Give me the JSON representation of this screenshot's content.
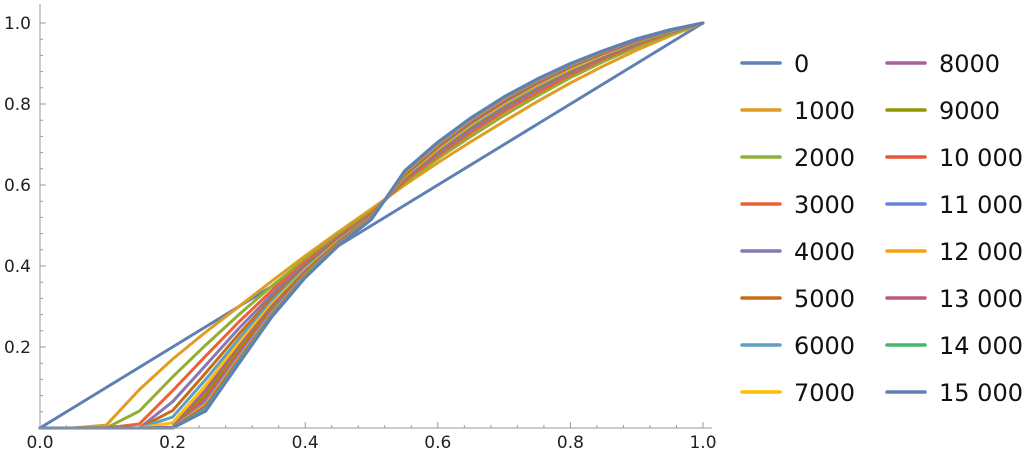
{
  "chart_data": {
    "type": "line",
    "title": "",
    "xlabel": "",
    "ylabel": "",
    "xlim": [
      0,
      1
    ],
    "ylim": [
      0,
      1
    ],
    "x_ticks": [
      "0.0",
      "0.2",
      "0.4",
      "0.6",
      "0.8",
      "1.0"
    ],
    "y_ticks": [
      "0.2",
      "0.4",
      "0.6",
      "0.8",
      "1.0"
    ],
    "grid": false,
    "legend_position": "right, two columns",
    "x": [
      0.0,
      0.05,
      0.1,
      0.15,
      0.2,
      0.25,
      0.3,
      0.35,
      0.4,
      0.45,
      0.5,
      0.55,
      0.6,
      0.65,
      0.7,
      0.75,
      0.8,
      0.85,
      0.9,
      0.95,
      1.0
    ],
    "series": [
      {
        "name": "0",
        "color": "#5E81B5",
        "values": [
          0.0,
          0.05,
          0.1,
          0.15,
          0.2,
          0.25,
          0.3,
          0.35,
          0.4,
          0.45,
          0.5,
          0.55,
          0.6,
          0.65,
          0.7,
          0.75,
          0.8,
          0.85,
          0.9,
          0.95,
          1.0
        ]
      },
      {
        "name": "1000",
        "color": "#E19C24",
        "values": [
          0.0,
          0.0,
          0.007,
          0.095,
          0.17,
          0.237,
          0.3,
          0.363,
          0.425,
          0.484,
          0.541,
          0.6,
          0.655,
          0.707,
          0.757,
          0.806,
          0.852,
          0.894,
          0.933,
          0.968,
          1.0
        ]
      },
      {
        "name": "2000",
        "color": "#8FB032",
        "values": [
          0.0,
          0.0,
          0.0,
          0.042,
          0.126,
          0.205,
          0.28,
          0.351,
          0.417,
          0.477,
          0.534,
          0.606,
          0.665,
          0.72,
          0.772,
          0.82,
          0.865,
          0.905,
          0.941,
          0.973,
          1.0
        ]
      },
      {
        "name": "3000",
        "color": "#EB6235",
        "values": [
          0.0,
          0.0,
          0.0,
          0.01,
          0.092,
          0.178,
          0.262,
          0.34,
          0.41,
          0.472,
          0.53,
          0.61,
          0.672,
          0.729,
          0.781,
          0.828,
          0.872,
          0.911,
          0.946,
          0.976,
          1.0
        ]
      },
      {
        "name": "4000",
        "color": "#8778B3",
        "values": [
          0.0,
          0.0,
          0.0,
          0.0,
          0.065,
          0.155,
          0.246,
          0.33,
          0.404,
          0.469,
          0.527,
          0.614,
          0.678,
          0.736,
          0.788,
          0.835,
          0.877,
          0.915,
          0.949,
          0.977,
          1.0
        ]
      },
      {
        "name": "5000",
        "color": "#C56E1A",
        "values": [
          0.0,
          0.0,
          0.0,
          0.0,
          0.043,
          0.136,
          0.232,
          0.321,
          0.399,
          0.466,
          0.525,
          0.617,
          0.683,
          0.742,
          0.794,
          0.84,
          0.881,
          0.918,
          0.951,
          0.978,
          1.0
        ]
      },
      {
        "name": "6000",
        "color": "#5D9EC7",
        "values": [
          0.0,
          0.0,
          0.0,
          0.0,
          0.027,
          0.12,
          0.22,
          0.314,
          0.394,
          0.463,
          0.523,
          0.62,
          0.687,
          0.746,
          0.798,
          0.844,
          0.885,
          0.921,
          0.953,
          0.979,
          1.0
        ]
      },
      {
        "name": "7000",
        "color": "#FFBF00",
        "values": [
          0.0,
          0.0,
          0.0,
          0.0,
          0.013,
          0.106,
          0.21,
          0.307,
          0.39,
          0.461,
          0.522,
          0.622,
          0.69,
          0.75,
          0.802,
          0.848,
          0.888,
          0.923,
          0.955,
          0.98,
          1.0
        ]
      },
      {
        "name": "8000",
        "color": "#A5609D",
        "values": [
          0.0,
          0.0,
          0.0,
          0.0,
          0.002,
          0.094,
          0.2,
          0.301,
          0.387,
          0.459,
          0.521,
          0.624,
          0.693,
          0.753,
          0.805,
          0.851,
          0.891,
          0.925,
          0.956,
          0.981,
          1.0
        ]
      },
      {
        "name": "9000",
        "color": "#929600",
        "values": [
          0.0,
          0.0,
          0.0,
          0.0,
          0.0,
          0.083,
          0.192,
          0.296,
          0.384,
          0.457,
          0.52,
          0.626,
          0.696,
          0.756,
          0.808,
          0.853,
          0.893,
          0.927,
          0.957,
          0.981,
          1.0
        ]
      },
      {
        "name": "10 000",
        "color": "#E95536",
        "values": [
          0.0,
          0.0,
          0.0,
          0.0,
          0.0,
          0.074,
          0.185,
          0.292,
          0.381,
          0.455,
          0.519,
          0.628,
          0.698,
          0.758,
          0.81,
          0.855,
          0.895,
          0.928,
          0.958,
          0.982,
          1.0
        ]
      },
      {
        "name": "11 000",
        "color": "#6685D9",
        "values": [
          0.0,
          0.0,
          0.0,
          0.0,
          0.0,
          0.066,
          0.179,
          0.288,
          0.379,
          0.454,
          0.518,
          0.63,
          0.7,
          0.76,
          0.812,
          0.857,
          0.896,
          0.929,
          0.959,
          0.982,
          1.0
        ]
      },
      {
        "name": "12 000",
        "color": "#F89F13",
        "values": [
          0.0,
          0.0,
          0.0,
          0.0,
          0.0,
          0.059,
          0.173,
          0.284,
          0.377,
          0.453,
          0.517,
          0.631,
          0.702,
          0.762,
          0.814,
          0.859,
          0.898,
          0.93,
          0.96,
          0.983,
          1.0
        ]
      },
      {
        "name": "13 000",
        "color": "#BC5B80",
        "values": [
          0.0,
          0.0,
          0.0,
          0.0,
          0.0,
          0.053,
          0.168,
          0.281,
          0.375,
          0.452,
          0.516,
          0.633,
          0.704,
          0.764,
          0.816,
          0.86,
          0.899,
          0.931,
          0.96,
          0.983,
          1.0
        ]
      },
      {
        "name": "14 000",
        "color": "#47B66D",
        "values": [
          0.0,
          0.0,
          0.0,
          0.0,
          0.0,
          0.047,
          0.163,
          0.278,
          0.373,
          0.451,
          0.516,
          0.634,
          0.705,
          0.765,
          0.817,
          0.861,
          0.9,
          0.932,
          0.961,
          0.983,
          1.0
        ]
      },
      {
        "name": "15 000",
        "color": "#5E81B5",
        "values": [
          0.0,
          0.0,
          0.0,
          0.0,
          0.0,
          0.042,
          0.159,
          0.275,
          0.371,
          0.45,
          0.515,
          0.635,
          0.706,
          0.766,
          0.818,
          0.862,
          0.9,
          0.932,
          0.961,
          0.983,
          1.0
        ]
      }
    ]
  }
}
